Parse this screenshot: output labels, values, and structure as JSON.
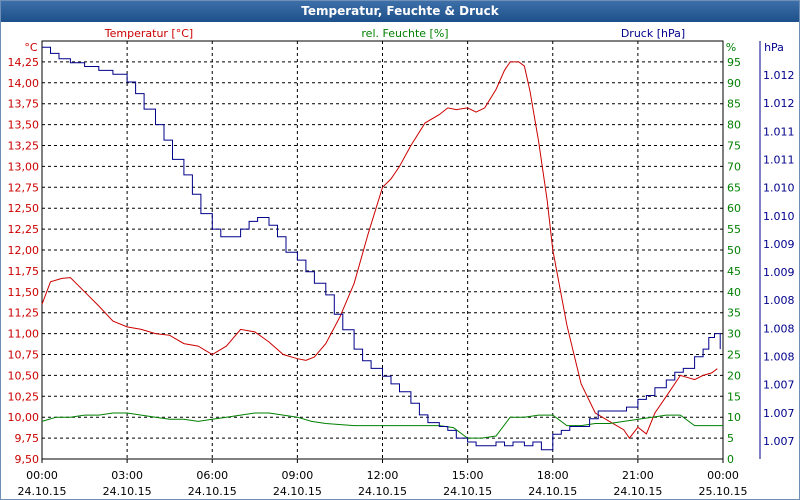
{
  "window": {
    "title": "Temperatur, Feuchte & Druck"
  },
  "chart_data": {
    "type": "line",
    "title": "Temperatur, Feuchte & Druck",
    "colors": {
      "temperature": "#cc0000",
      "humidity": "#008000",
      "pressure": "#00008b",
      "grid": "#000000"
    },
    "x_ticks": [
      {
        "time": "00:00",
        "date": "24.10.15"
      },
      {
        "time": "03:00",
        "date": "24.10.15"
      },
      {
        "time": "06:00",
        "date": "24.10.15"
      },
      {
        "time": "09:00",
        "date": "24.10.15"
      },
      {
        "time": "12:00",
        "date": "24.10.15"
      },
      {
        "time": "15:00",
        "date": "24.10.15"
      },
      {
        "time": "18:00",
        "date": "24.10.15"
      },
      {
        "time": "21:00",
        "date": "24.10.15"
      },
      {
        "time": "00:00",
        "date": "25.10.15"
      }
    ],
    "xlim": [
      0,
      24
    ],
    "axes": {
      "temperature": {
        "label": "Temperatur [°C]",
        "unit": "°C",
        "ylim": [
          9.5,
          14.5
        ],
        "ticks": [
          "9,50",
          "9,75",
          "10,00",
          "10,25",
          "10,50",
          "10,75",
          "11,00",
          "11,25",
          "11,50",
          "11,75",
          "12,00",
          "12,25",
          "12,50",
          "12,75",
          "13,00",
          "13,25",
          "13,50",
          "13,75",
          "14,00",
          "14,25"
        ]
      },
      "humidity": {
        "label": "rel. Feuchte [%]",
        "unit": "%",
        "ylim": [
          0,
          100
        ],
        "ticks": [
          "0",
          "5",
          "10",
          "15",
          "20",
          "25",
          "30",
          "35",
          "40",
          "45",
          "50",
          "55",
          "60",
          "65",
          "70",
          "75",
          "80",
          "85",
          "90",
          "95"
        ]
      },
      "pressure": {
        "label": "Druck [hPa]",
        "unit": "hPa",
        "ylim": [
          1006.88,
          1012.28
        ],
        "ticks": [
          "1.007",
          "1.007",
          "1.007",
          "1.008",
          "1.008",
          "1.008",
          "1.009",
          "1.009",
          "1.010",
          "1.010",
          "1.011",
          "1.011",
          "1.012",
          "1.012"
        ]
      }
    },
    "series": [
      {
        "name": "Temperatur",
        "axis": "temperature",
        "x": [
          0,
          0.3,
          0.7,
          1,
          1.5,
          2,
          2.5,
          3,
          3.5,
          4,
          4.5,
          5,
          5.5,
          6,
          6.5,
          7,
          7.5,
          8,
          8.5,
          9,
          9.3,
          9.6,
          10,
          10.5,
          11,
          11.5,
          12,
          12.3,
          12.6,
          13,
          13.5,
          14,
          14.3,
          14.6,
          15,
          15.3,
          15.6,
          16,
          16.3,
          16.5,
          16.8,
          17,
          17.2,
          17.5,
          17.8,
          18,
          18.5,
          19,
          19.5,
          20,
          20.5,
          20.7,
          21,
          21.3,
          21.6,
          22,
          22.5,
          23,
          23.3,
          23.6,
          23.8
        ],
        "y": [
          11.35,
          11.62,
          11.66,
          11.67,
          11.5,
          11.33,
          11.15,
          11.08,
          11.05,
          11.0,
          10.98,
          10.88,
          10.85,
          10.75,
          10.85,
          11.05,
          11.02,
          10.9,
          10.75,
          10.7,
          10.68,
          10.72,
          10.88,
          11.2,
          11.6,
          12.2,
          12.75,
          12.85,
          13.0,
          13.25,
          13.52,
          13.62,
          13.7,
          13.68,
          13.7,
          13.65,
          13.7,
          13.92,
          14.15,
          14.25,
          14.25,
          14.2,
          13.9,
          13.3,
          12.6,
          12.0,
          11.1,
          10.4,
          10.05,
          9.95,
          9.85,
          9.75,
          9.88,
          9.8,
          10.05,
          10.25,
          10.5,
          10.45,
          10.5,
          10.53,
          10.58
        ]
      },
      {
        "name": "rel. Feuchte",
        "axis": "humidity",
        "x": [
          0,
          0.5,
          1,
          1.5,
          2,
          2.5,
          3,
          3.5,
          4,
          4.5,
          5,
          5.5,
          6,
          6.5,
          7,
          7.5,
          8,
          8.5,
          9,
          9.5,
          10,
          11,
          12,
          13,
          14,
          14.5,
          15,
          15.5,
          16,
          16.5,
          17,
          17.5,
          18,
          18.5,
          19,
          19.5,
          20,
          20.5,
          21,
          21.5,
          22,
          22.5,
          23,
          23.5,
          24
        ],
        "y": [
          9,
          10,
          10,
          10.5,
          10.5,
          11,
          11,
          10.5,
          10,
          9.5,
          9.5,
          9,
          9.5,
          10,
          10.5,
          11,
          11,
          10.5,
          10,
          9,
          8.5,
          8,
          8,
          8,
          8,
          7.5,
          5,
          5,
          5.5,
          10,
          10,
          10.5,
          10.5,
          8,
          8,
          8.5,
          8.5,
          9,
          9.5,
          10,
          10.5,
          10.5,
          8,
          8,
          8
        ]
      },
      {
        "name": "Druck",
        "axis": "pressure",
        "x": [
          0,
          0.3,
          0.6,
          1,
          1.5,
          2,
          2.5,
          3,
          3.3,
          3.6,
          4,
          4.3,
          4.6,
          5,
          5.3,
          5.6,
          6,
          6.3,
          6.6,
          7,
          7.3,
          7.6,
          8,
          8.3,
          8.6,
          9,
          9.3,
          9.6,
          10,
          10.3,
          10.6,
          11,
          11.3,
          11.6,
          12,
          12.3,
          12.6,
          13,
          13.3,
          13.6,
          14,
          14.3,
          14.6,
          15,
          15.3,
          15.6,
          16,
          16.3,
          16.6,
          17,
          17.3,
          17.6,
          18,
          18.3,
          18.6,
          19,
          19.3,
          19.6,
          20,
          20.3,
          20.6,
          21,
          21.3,
          21.6,
          22,
          22.3,
          22.6,
          23,
          23.3,
          23.5,
          23.7,
          23.9
        ],
        "y": [
          1012.2,
          1012.12,
          1012.05,
          1012.0,
          1011.95,
          1011.9,
          1011.85,
          1011.75,
          1011.6,
          1011.4,
          1011.2,
          1011.0,
          1010.75,
          1010.55,
          1010.3,
          1010.05,
          1009.85,
          1009.75,
          1009.75,
          1009.85,
          1009.95,
          1010.0,
          1009.9,
          1009.75,
          1009.55,
          1009.45,
          1009.3,
          1009.15,
          1009.0,
          1008.75,
          1008.55,
          1008.3,
          1008.15,
          1008.05,
          1007.95,
          1007.85,
          1007.75,
          1007.6,
          1007.45,
          1007.35,
          1007.3,
          1007.25,
          1007.15,
          1007.1,
          1007.05,
          1007.05,
          1007.1,
          1007.05,
          1007.1,
          1007.05,
          1007.1,
          1007.0,
          1007.2,
          1007.25,
          1007.3,
          1007.3,
          1007.4,
          1007.5,
          1007.5,
          1007.5,
          1007.55,
          1007.65,
          1007.7,
          1007.8,
          1007.9,
          1008.0,
          1008.05,
          1008.2,
          1008.3,
          1008.45,
          1008.5,
          1008.3
        ]
      }
    ]
  }
}
